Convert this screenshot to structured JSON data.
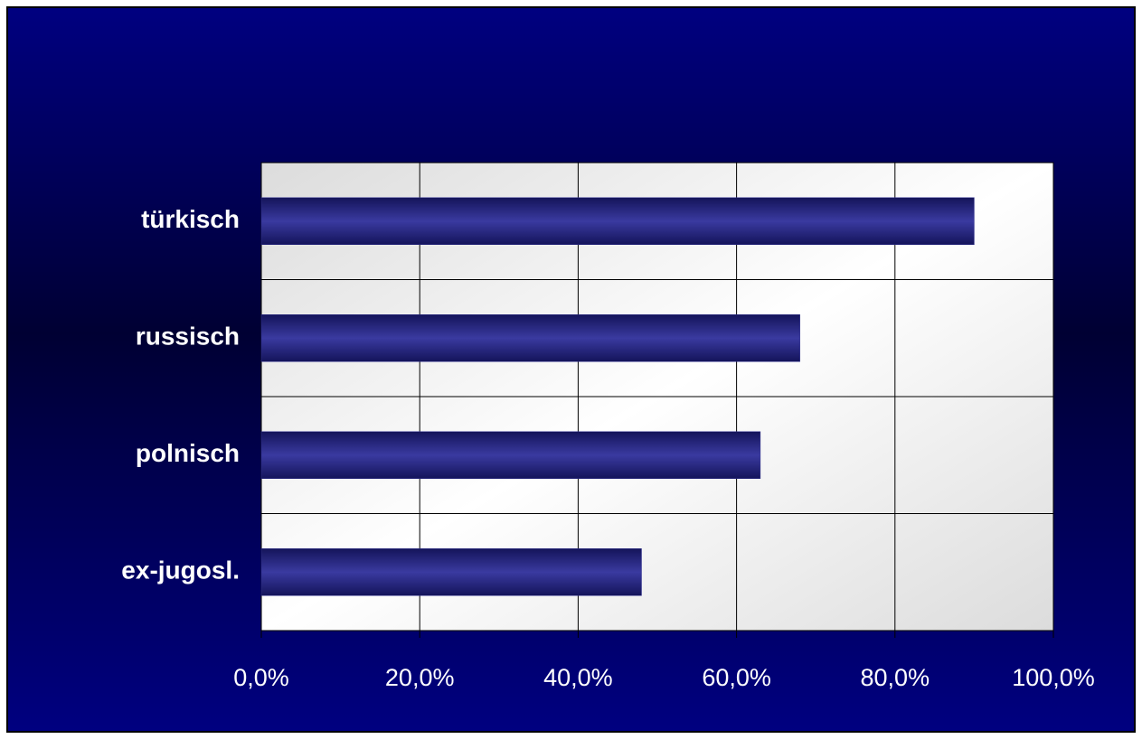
{
  "chart_data": {
    "type": "bar",
    "orientation": "horizontal",
    "categories": [
      "türkisch",
      "russisch",
      "polnisch",
      "ex-jugosl."
    ],
    "values": [
      90,
      68,
      63,
      48
    ],
    "color": "#2e2e8c",
    "xlim": [
      0,
      100
    ],
    "xticks": [
      {
        "value": 0,
        "label": "0,0%"
      },
      {
        "value": 20,
        "label": "20,0%"
      },
      {
        "value": 40,
        "label": "40,0%"
      },
      {
        "value": 60,
        "label": "60,0%"
      },
      {
        "value": 80,
        "label": "80,0%"
      },
      {
        "value": 100,
        "label": "100,0%"
      }
    ],
    "grid": true
  }
}
